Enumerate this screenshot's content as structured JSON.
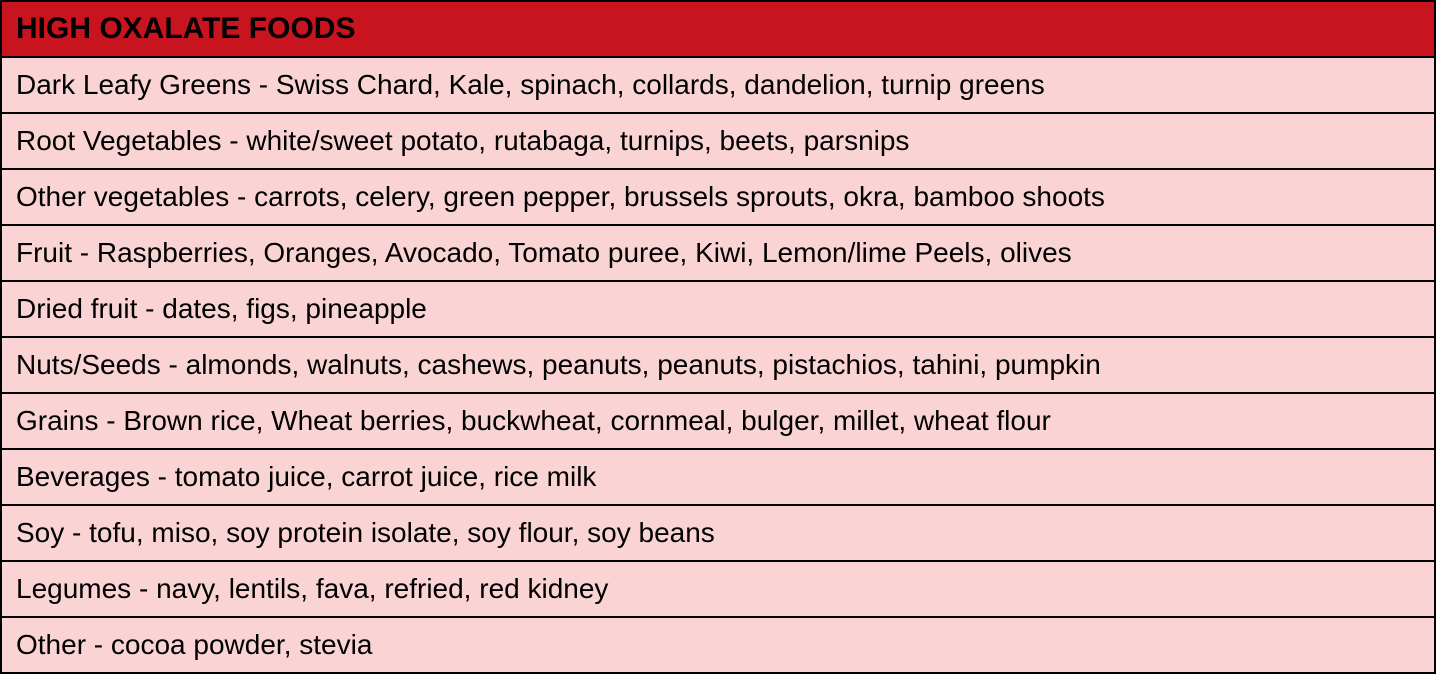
{
  "table": {
    "type": "table",
    "header": "HIGH OXALATE FOODS",
    "header_bg_color": "#c8141e",
    "header_text_color": "#000000",
    "header_fontsize": 30,
    "header_fontweight": "bold",
    "row_bg_color": "#fad4d4",
    "row_text_color": "#000000",
    "row_fontsize": 28,
    "border_color": "#000000",
    "border_width": 2,
    "rows": [
      "Dark Leafy Greens - Swiss Chard, Kale, spinach, collards, dandelion, turnip greens",
      "Root Vegetables - white/sweet potato, rutabaga, turnips, beets, parsnips",
      "Other vegetables - carrots, celery, green pepper, brussels sprouts, okra, bamboo shoots",
      "Fruit - Raspberries, Oranges, Avocado, Tomato puree, Kiwi, Lemon/lime Peels, olives",
      "Dried fruit - dates, figs, pineapple",
      "Nuts/Seeds - almonds, walnuts, cashews, peanuts, peanuts, pistachios, tahini, pumpkin",
      "Grains - Brown rice, Wheat berries, buckwheat, cornmeal, bulger, millet, wheat flour",
      "Beverages - tomato juice, carrot juice, rice milk",
      "Soy - tofu, miso, soy protein isolate, soy flour, soy beans",
      "Legumes - navy, lentils, fava, refried, red kidney",
      "Other - cocoa powder, stevia"
    ]
  }
}
